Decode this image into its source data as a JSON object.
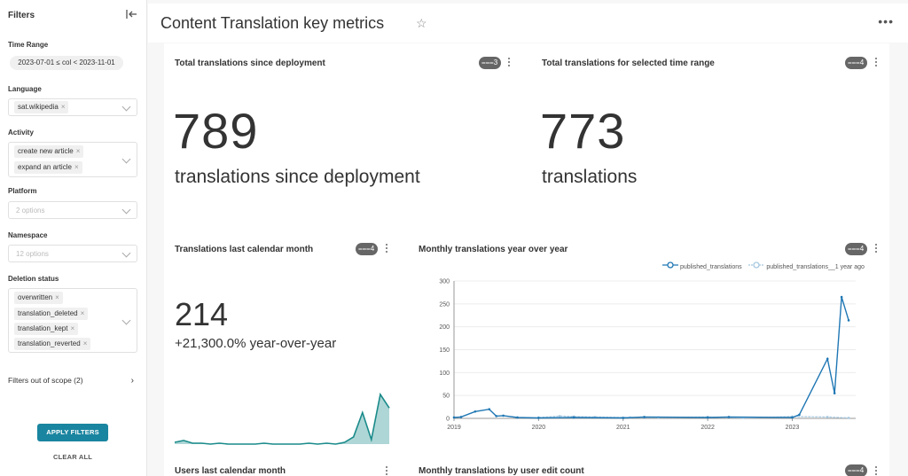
{
  "sidebar": {
    "title": "Filters",
    "time_range": {
      "label": "Time Range",
      "value": "2023-07-01 ≤ col < 2023-11-01"
    },
    "language": {
      "label": "Language",
      "tags": [
        "sat.wikipedia"
      ]
    },
    "activity": {
      "label": "Activity",
      "tags": [
        "create new article",
        "expand an article"
      ]
    },
    "platform": {
      "label": "Platform",
      "placeholder": "2 options"
    },
    "namespace": {
      "label": "Namespace",
      "placeholder": "12 options"
    },
    "deletion_status": {
      "label": "Deletion status",
      "tags": [
        "overwritten",
        "translation_deleted",
        "translation_kept",
        "translation_reverted"
      ]
    },
    "out_of_scope": "Filters out of scope (2)",
    "apply_label": "APPLY FILTERS",
    "clear_label": "CLEAR ALL"
  },
  "header": {
    "title": "Content Translation key metrics"
  },
  "cards": {
    "total_since_deployment": {
      "title": "Total translations since deployment",
      "badge": "3",
      "value": "789",
      "subtitle": "translations since deployment"
    },
    "total_selected_range": {
      "title": "Total translations for selected time range",
      "badge": "4",
      "value": "773",
      "subtitle": "translations"
    },
    "last_calendar_month": {
      "title": "Translations last calendar month",
      "badge": "4",
      "value": "214",
      "subtitle": "+21,300.0% year-over-year"
    },
    "monthly_yoy": {
      "title": "Monthly translations year over year",
      "badge": "4"
    },
    "users_last_month": {
      "title": "Users last calendar month"
    },
    "monthly_by_edit_count": {
      "title": "Monthly translations by user edit count",
      "badge": "4"
    }
  },
  "colors": {
    "accent": "#1a85a0",
    "series_primary": "#1f77b4",
    "series_secondary": "#a6c8e0",
    "sparkline": "#1a8a8a"
  },
  "chart_data": [
    {
      "type": "line",
      "title": "Monthly translations year over year",
      "ylim": [
        0,
        300
      ],
      "yticks": [
        0,
        50,
        100,
        150,
        200,
        250,
        300
      ],
      "xticks": [
        "2019",
        "2020",
        "2021",
        "2022",
        "2023"
      ],
      "series": [
        {
          "name": "published_translations",
          "x": [
            "2019-01",
            "2019-02",
            "2019-04",
            "2019-06",
            "2019-07",
            "2019-08",
            "2019-10",
            "2020-01",
            "2020-06",
            "2021-01",
            "2021-04",
            "2022-01",
            "2022-04",
            "2023-01",
            "2023-02",
            "2023-06",
            "2023-07",
            "2023-08",
            "2023-09"
          ],
          "values": [
            2,
            3,
            15,
            20,
            5,
            6,
            2,
            1,
            2,
            1,
            3,
            2,
            3,
            2,
            8,
            130,
            55,
            265,
            214
          ]
        },
        {
          "name": "published_translations__1 year ago",
          "x": [
            "2020-01",
            "2020-04",
            "2020-06",
            "2020-09",
            "2021-02",
            "2021-06",
            "2022-01",
            "2022-06",
            "2023-01",
            "2023-06",
            "2023-09"
          ],
          "values": [
            2,
            5,
            4,
            3,
            2,
            2,
            3,
            1,
            4,
            3,
            1
          ]
        }
      ]
    },
    {
      "type": "area",
      "title": "Translations last calendar month",
      "values": [
        2,
        4,
        1,
        1,
        0,
        1,
        0,
        0,
        0,
        0,
        1,
        0,
        0,
        0,
        0,
        1,
        0,
        1,
        0,
        2,
        8,
        35,
        5,
        55,
        40
      ]
    }
  ]
}
